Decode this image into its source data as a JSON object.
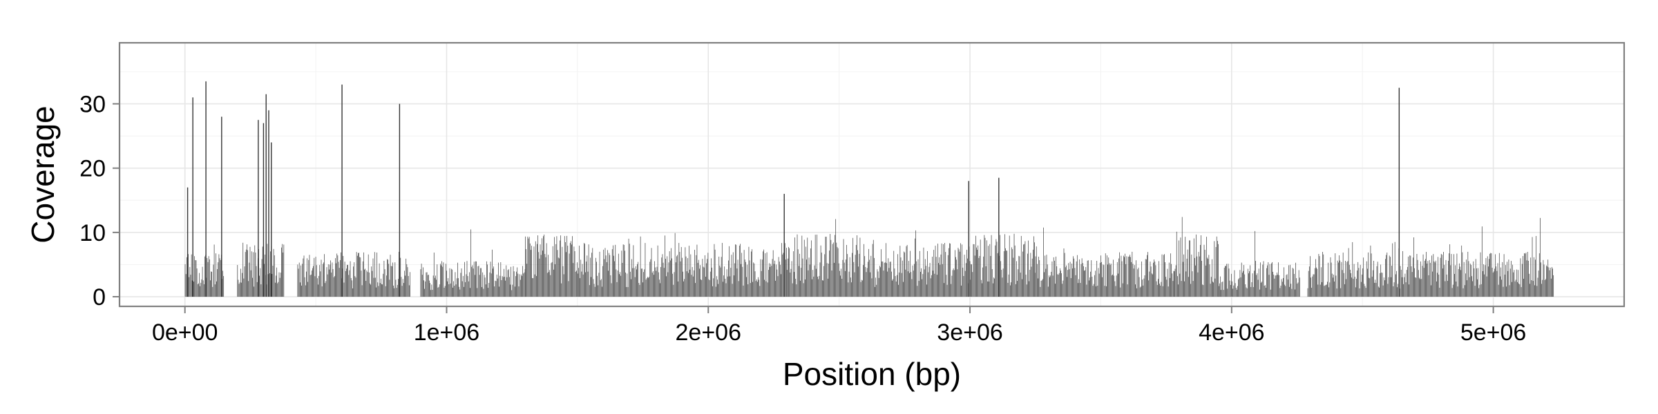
{
  "chart_data": {
    "type": "bar",
    "title": "",
    "xlabel": "Position (bp)",
    "ylabel": "Coverage",
    "xlim": [
      -250000,
      5500000
    ],
    "ylim": [
      -1.5,
      39.5
    ],
    "x_ticks": [
      0,
      1000000,
      2000000,
      3000000,
      4000000,
      5000000
    ],
    "x_tick_labels": [
      "0e+00",
      "1e+06",
      "2e+06",
      "3e+06",
      "4e+06",
      "5e+06"
    ],
    "y_ticks": [
      0,
      10,
      20,
      30
    ],
    "y_tick_labels": [
      "0",
      "10",
      "20",
      "30"
    ],
    "grid": true,
    "genome_length": 5230000,
    "segments": [
      {
        "start": 0,
        "end": 150000,
        "base": 5
      },
      {
        "start": 200000,
        "end": 380000,
        "base": 6
      },
      {
        "start": 430000,
        "end": 860000,
        "base": 5
      },
      {
        "start": 900000,
        "end": 1300000,
        "base": 4
      },
      {
        "start": 1300000,
        "end": 1500000,
        "base": 7
      },
      {
        "start": 1500000,
        "end": 2300000,
        "base": 6
      },
      {
        "start": 2300000,
        "end": 2600000,
        "base": 7
      },
      {
        "start": 2600000,
        "end": 3000000,
        "base": 6
      },
      {
        "start": 3000000,
        "end": 3250000,
        "base": 7
      },
      {
        "start": 3250000,
        "end": 3780000,
        "base": 5
      },
      {
        "start": 3780000,
        "end": 3950000,
        "base": 7
      },
      {
        "start": 3950000,
        "end": 4260000,
        "base": 4
      },
      {
        "start": 4290000,
        "end": 5230000,
        "base": 5
      }
    ],
    "peaks": [
      {
        "x": 10000,
        "y": 17
      },
      {
        "x": 30000,
        "y": 31
      },
      {
        "x": 80000,
        "y": 33.5
      },
      {
        "x": 140000,
        "y": 28
      },
      {
        "x": 280000,
        "y": 27.5
      },
      {
        "x": 300000,
        "y": 27
      },
      {
        "x": 310000,
        "y": 31.5
      },
      {
        "x": 320000,
        "y": 29
      },
      {
        "x": 330000,
        "y": 24
      },
      {
        "x": 600000,
        "y": 33
      },
      {
        "x": 820000,
        "y": 30
      },
      {
        "x": 2290000,
        "y": 16
      },
      {
        "x": 2995000,
        "y": 18
      },
      {
        "x": 3110000,
        "y": 18.5
      },
      {
        "x": 4640000,
        "y": 32.5
      }
    ]
  }
}
